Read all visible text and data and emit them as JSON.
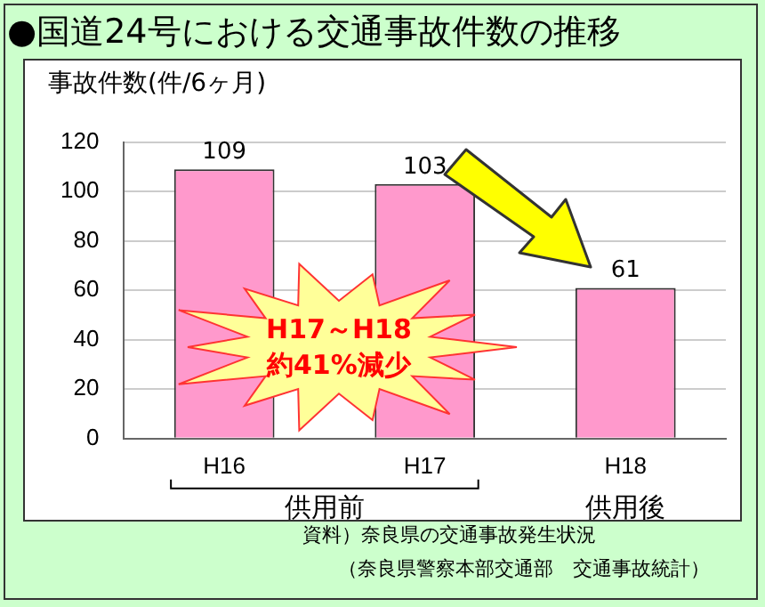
{
  "chart_data": {
    "type": "bar",
    "title": "●国道24号における交通事故件数の推移",
    "ylabel": "事故件数(件/6ヶ月)",
    "categories": [
      "H16",
      "H17",
      "H18"
    ],
    "values": [
      109,
      103,
      61
    ],
    "color": "#ff99cc",
    "ylim": [
      0,
      120
    ],
    "yticks": [
      0,
      20,
      40,
      60,
      80,
      100,
      120
    ],
    "grid": "y",
    "data_labels": true,
    "annotations": [
      "H17～H18\n約41%減少",
      "供用前",
      "供用後",
      "資料）奈良県の交通事故発生状況",
      "（奈良県警察本部交通部　交通事故統計）"
    ]
  }
}
